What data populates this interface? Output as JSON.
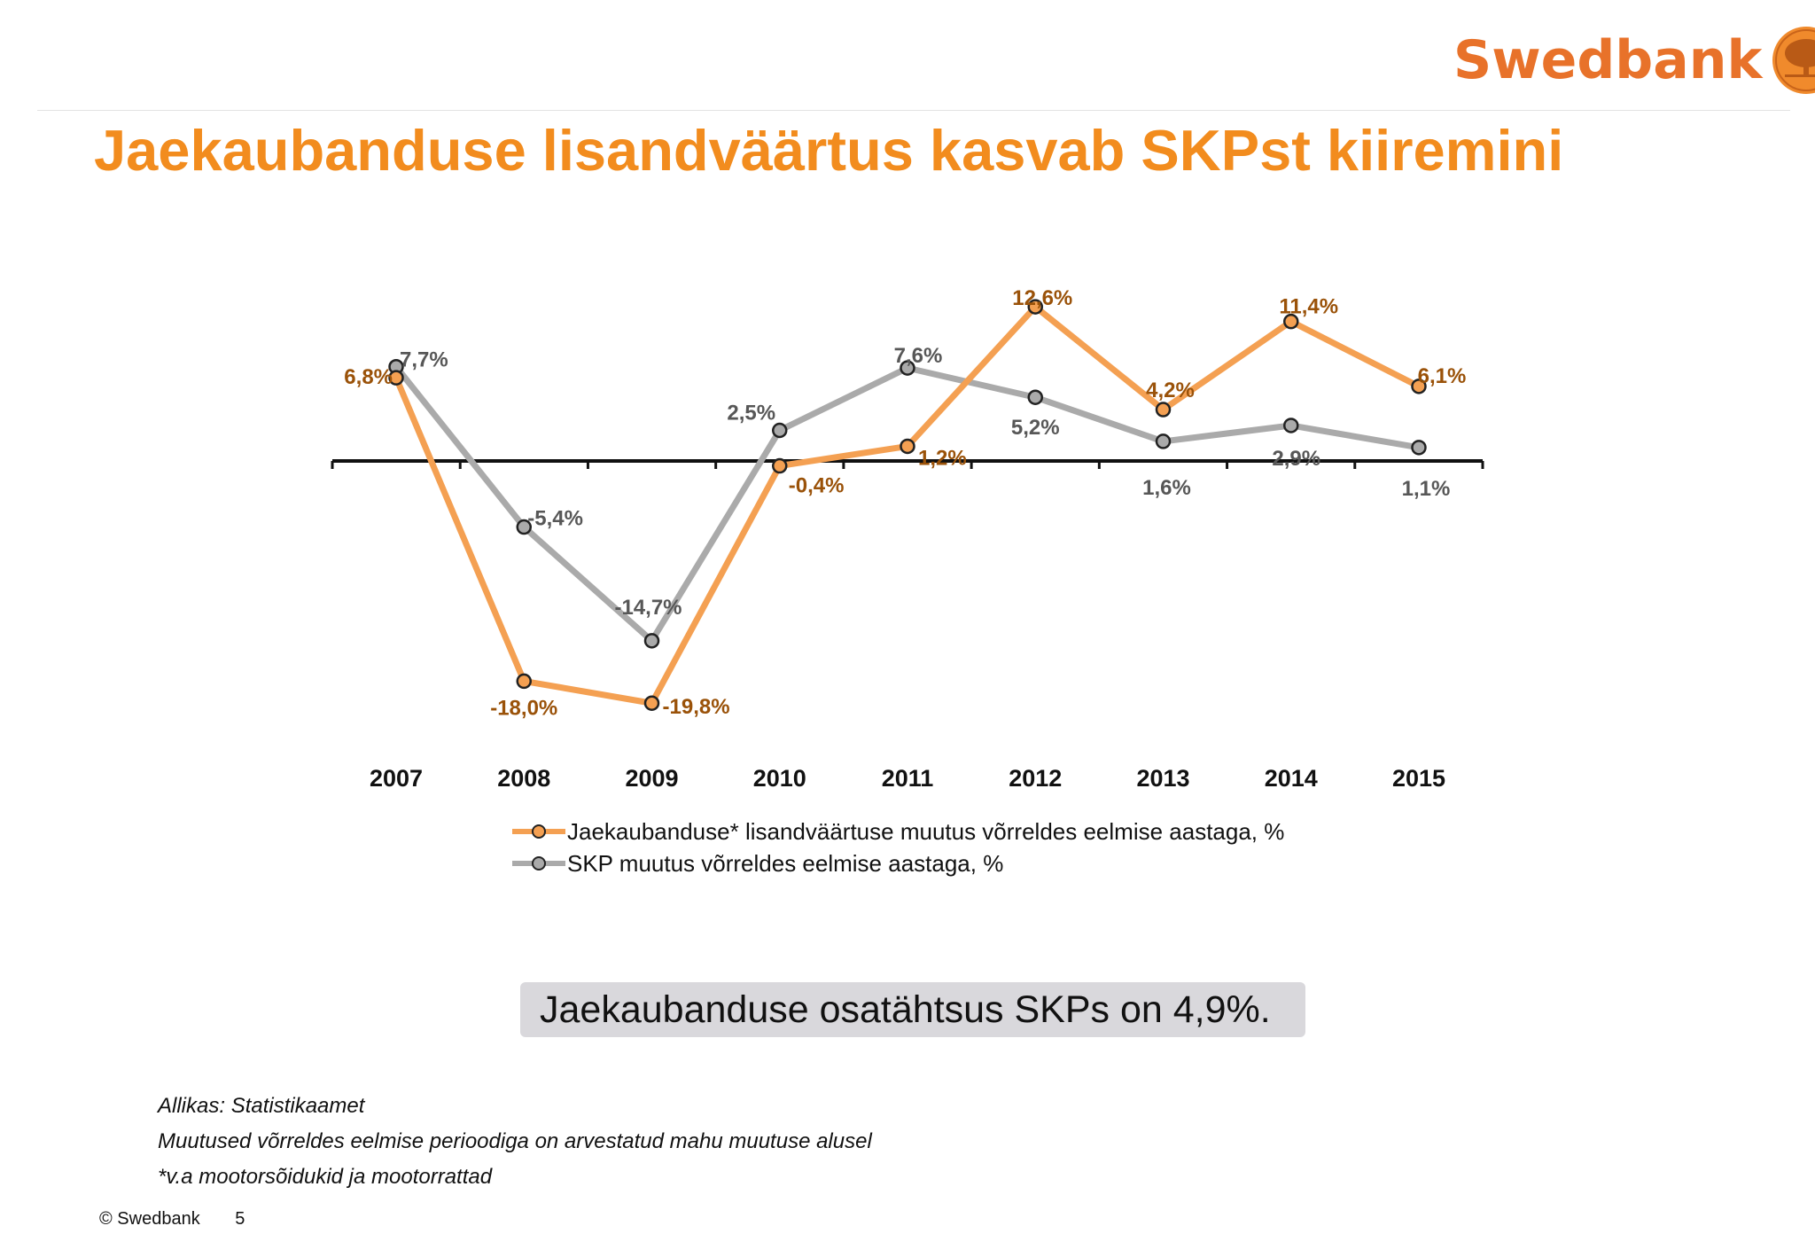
{
  "header": {
    "logo_text": "Swedbank",
    "title": "Jaekaubanduse lisandväärtus kasvab SKPst kiiremini"
  },
  "chart_data": {
    "type": "line",
    "categories": [
      "2007",
      "2008",
      "2009",
      "2010",
      "2011",
      "2012",
      "2013",
      "2014",
      "2015"
    ],
    "ylim": [
      -21,
      13
    ],
    "grid": false,
    "legend_position": "bottom",
    "series": [
      {
        "name": "Jaekaubanduse* lisandväärtuse muutus võrreldes eelmise aastaga, %",
        "values": [
          6.8,
          -18.0,
          -19.8,
          -0.4,
          1.2,
          12.6,
          4.2,
          11.4,
          6.1
        ],
        "labels": [
          "6,8%",
          "-18,0%",
          "-19,8%",
          "-0,4%",
          "1,2%",
          "12,6%",
          "4,2%",
          "11,4%",
          "6,1%"
        ],
        "color": "#f4a052",
        "label_color": "#9a5209"
      },
      {
        "name": "SKP muutus võrreldes eelmise aastaga, %",
        "values": [
          7.7,
          -5.4,
          -14.7,
          2.5,
          7.6,
          5.2,
          1.6,
          2.9,
          1.1
        ],
        "labels": [
          "7,7%",
          "-5,4%",
          "-14,7%",
          "2,5%",
          "7,6%",
          "5,2%",
          "1,6%",
          "2,9%",
          "1,1%"
        ],
        "color": "#aaaaaa",
        "label_color": "#575757"
      }
    ]
  },
  "note": "Jaekaubanduse osatähtsus SKPs on 4,9%.",
  "footnotes": [
    "Allikas: Statistikaamet",
    "Muutused võrreldes eelmise perioodiga on arvestatud mahu muutuse alusel",
    "*v.a mootorsõidukid ja mootorrattad"
  ],
  "footer": {
    "copyright": "© Swedbank",
    "page_number": "5"
  }
}
